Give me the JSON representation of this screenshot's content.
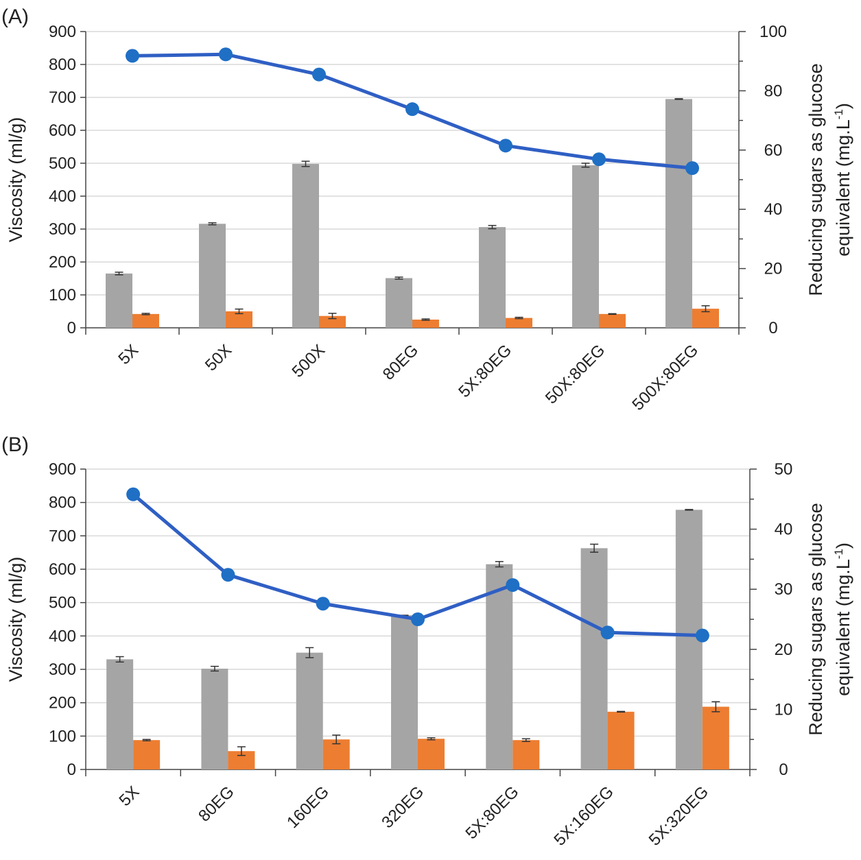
{
  "colors": {
    "bar": "#a5a5a5",
    "bar2": "#ed7d31",
    "line": "#2f5fc4",
    "marker": "#1f6fc5",
    "grid": "#d9d9d9",
    "axis": "#444444"
  },
  "chart_data": [
    {
      "panel_label": "(A)",
      "type": "bar+line",
      "categories": [
        "5X",
        "50X",
        "500X",
        "80EG",
        "5X:80EG",
        "50X:80EG",
        "500X:80EG"
      ],
      "ylabel": "Viscosity (ml/g)",
      "y2label_line1": "Reducing sugars as glucose",
      "y2label_line2_prefix": "equivalent (mg.L",
      "y2label_sup": "-1",
      "y2label_suffix": ")",
      "ylim": [
        0,
        900
      ],
      "yticks": [
        "0",
        "100",
        "200",
        "300",
        "400",
        "500",
        "600",
        "700",
        "800",
        "900"
      ],
      "y2lim": [
        0,
        100
      ],
      "y2ticks": [
        "0",
        "20",
        "40",
        "60",
        "80",
        "100"
      ],
      "grid": true,
      "series": [
        {
          "name": "Viscosity (gray)",
          "axis": "left",
          "kind": "bar",
          "values": [
            165,
            316,
            498,
            151,
            306,
            494,
            695
          ],
          "errors": [
            4,
            3,
            8,
            3,
            5,
            6,
            1
          ]
        },
        {
          "name": "Viscosity (orange)",
          "axis": "left",
          "kind": "bar",
          "values": [
            42,
            50,
            36,
            25,
            30,
            42,
            58
          ],
          "errors": [
            2,
            7,
            8,
            2,
            2,
            1,
            9
          ]
        },
        {
          "name": "Reducing sugars",
          "axis": "right",
          "kind": "line",
          "values": [
            91.8,
            92.3,
            85.5,
            73.8,
            61.5,
            56.9,
            53.9
          ]
        }
      ]
    },
    {
      "panel_label": "(B)",
      "type": "bar+line",
      "categories": [
        "5X",
        "80EG",
        "160EG",
        "320EG",
        "5X:80EG",
        "5X:160EG",
        "5X:320EG"
      ],
      "ylabel": "Viscosity (ml/g)",
      "y2label_line1": "Reducing sugars as glucose",
      "y2label_line2_prefix": "equivalent (mg.L",
      "y2label_sup": "-1",
      "y2label_suffix": ")",
      "ylim": [
        0,
        900
      ],
      "yticks": [
        "0",
        "100",
        "200",
        "300",
        "400",
        "500",
        "600",
        "700",
        "800",
        "900"
      ],
      "y2lim": [
        0,
        50
      ],
      "y2ticks": [
        "0",
        "10",
        "20",
        "30",
        "40",
        "50"
      ],
      "grid": true,
      "series": [
        {
          "name": "Viscosity (gray)",
          "axis": "left",
          "kind": "bar",
          "values": [
            330,
            302,
            350,
            462,
            615,
            663,
            778
          ],
          "errors": [
            8,
            7,
            15,
            0,
            8,
            12,
            1
          ]
        },
        {
          "name": "Viscosity (orange)",
          "axis": "left",
          "kind": "bar",
          "values": [
            88,
            55,
            90,
            92,
            88,
            173,
            188
          ],
          "errors": [
            2,
            13,
            13,
            3,
            4,
            1,
            15
          ]
        },
        {
          "name": "Reducing sugars",
          "axis": "right",
          "kind": "line",
          "values": [
            45.8,
            32.4,
            27.6,
            25.0,
            30.7,
            22.8,
            22.3
          ]
        }
      ]
    }
  ]
}
